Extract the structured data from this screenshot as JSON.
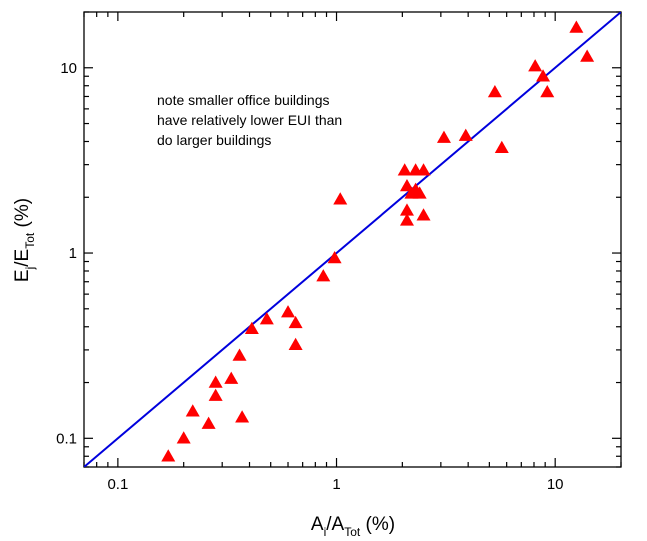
{
  "chart_data": {
    "type": "scatter",
    "x_scale": "log",
    "y_scale": "log",
    "xlim": [
      0.07,
      20
    ],
    "ylim": [
      0.07,
      20
    ],
    "grid": false,
    "xlabel": {
      "main": "A",
      "sub": "i",
      "sep": "/A",
      "sub2": "Tot",
      "suffix": " (%)"
    },
    "ylabel": {
      "main": "E",
      "sub": "j",
      "sep": "/E",
      "sub2": "Tot",
      "suffix": " (%)"
    },
    "x_ticks": [
      {
        "value": 0.1,
        "label": "0.1"
      },
      {
        "value": 1,
        "label": "1"
      },
      {
        "value": 10,
        "label": "10"
      }
    ],
    "y_ticks": [
      {
        "value": 0.1,
        "label": "0.1"
      },
      {
        "value": 1,
        "label": "1"
      },
      {
        "value": 10,
        "label": "10"
      }
    ],
    "annotation": [
      "note smaller office buildings",
      "have relatively lower EUI than",
      "do larger buildings"
    ],
    "marker": {
      "shape": "triangle",
      "color": "#ff0000"
    },
    "fit_line": {
      "color": "#0000dd",
      "x": [
        0.07,
        20
      ],
      "y": [
        0.07,
        20
      ]
    },
    "points": [
      {
        "x": 0.17,
        "y": 0.08
      },
      {
        "x": 0.2,
        "y": 0.1
      },
      {
        "x": 0.22,
        "y": 0.14
      },
      {
        "x": 0.26,
        "y": 0.12
      },
      {
        "x": 0.28,
        "y": 0.2
      },
      {
        "x": 0.28,
        "y": 0.17
      },
      {
        "x": 0.33,
        "y": 0.21
      },
      {
        "x": 0.36,
        "y": 0.28
      },
      {
        "x": 0.37,
        "y": 0.13
      },
      {
        "x": 0.41,
        "y": 0.39
      },
      {
        "x": 0.48,
        "y": 0.44
      },
      {
        "x": 0.6,
        "y": 0.48
      },
      {
        "x": 0.65,
        "y": 0.42
      },
      {
        "x": 0.65,
        "y": 0.32
      },
      {
        "x": 0.87,
        "y": 0.75
      },
      {
        "x": 0.98,
        "y": 0.94
      },
      {
        "x": 1.04,
        "y": 1.95
      },
      {
        "x": 2.05,
        "y": 2.8
      },
      {
        "x": 2.1,
        "y": 2.3
      },
      {
        "x": 2.1,
        "y": 1.7
      },
      {
        "x": 2.1,
        "y": 1.5
      },
      {
        "x": 2.2,
        "y": 2.1
      },
      {
        "x": 2.3,
        "y": 2.8
      },
      {
        "x": 2.3,
        "y": 2.2
      },
      {
        "x": 2.4,
        "y": 2.1
      },
      {
        "x": 2.5,
        "y": 2.8
      },
      {
        "x": 2.5,
        "y": 1.6
      },
      {
        "x": 3.1,
        "y": 4.2
      },
      {
        "x": 3.9,
        "y": 4.3
      },
      {
        "x": 5.3,
        "y": 7.4
      },
      {
        "x": 5.7,
        "y": 3.7
      },
      {
        "x": 8.1,
        "y": 10.2
      },
      {
        "x": 8.8,
        "y": 9.0
      },
      {
        "x": 9.2,
        "y": 7.4
      },
      {
        "x": 12.5,
        "y": 16.5
      },
      {
        "x": 14.0,
        "y": 11.5
      }
    ]
  }
}
